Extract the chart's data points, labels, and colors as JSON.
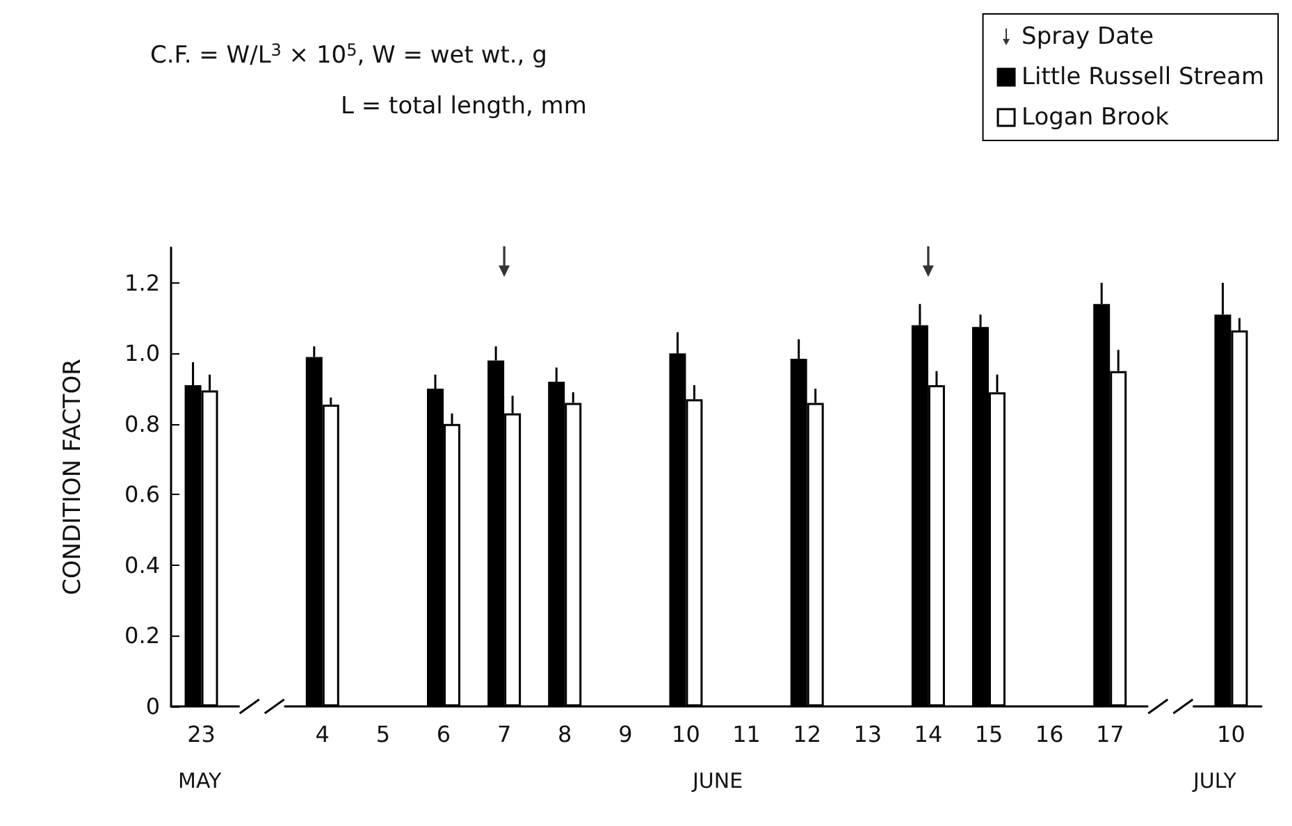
{
  "chart_data": {
    "type": "bar",
    "ylabel": "CONDITION FACTOR",
    "categories": [
      "23",
      null,
      "4",
      "5",
      "6",
      "7",
      "8",
      "9",
      "10",
      "11",
      "12",
      "13",
      "14",
      "15",
      "16",
      "17",
      null,
      "10"
    ],
    "series": [
      {
        "name": "Spray Date",
        "type": "scatter",
        "color": "#000000",
        "x": [
          "7",
          "14"
        ],
        "values": [
          1.26,
          1.26
        ]
      },
      {
        "name": "Little Russell Stream",
        "color": "#000000",
        "values": [
          0.91,
          null,
          0.99,
          null,
          0.9,
          0.98,
          0.92,
          null,
          1.0,
          null,
          0.985,
          null,
          1.08,
          1.075,
          null,
          1.14,
          null,
          1.11
        ],
        "errors": [
          [
            0.91,
            0.975
          ],
          null,
          [
            0.99,
            1.02
          ],
          null,
          [
            0.9,
            0.94
          ],
          [
            0.98,
            1.02
          ],
          [
            0.92,
            0.96
          ],
          null,
          [
            1.0,
            1.06
          ],
          null,
          [
            0.985,
            1.04
          ],
          null,
          [
            1.08,
            1.14
          ],
          [
            1.075,
            1.11
          ],
          null,
          [
            1.14,
            1.2
          ],
          null,
          [
            1.11,
            1.2
          ]
        ]
      },
      {
        "name": "Logan Brook",
        "color": "#ffffff",
        "values": [
          0.895,
          null,
          0.855,
          null,
          0.8,
          0.83,
          0.86,
          null,
          0.87,
          null,
          0.86,
          null,
          0.91,
          0.89,
          null,
          0.95,
          null,
          1.065
        ],
        "errors": [
          [
            0.895,
            0.94
          ],
          null,
          [
            0.855,
            0.875
          ],
          null,
          [
            0.8,
            0.83
          ],
          [
            0.83,
            0.88
          ],
          [
            0.86,
            0.89
          ],
          null,
          [
            0.87,
            0.91
          ],
          null,
          [
            0.86,
            0.9
          ],
          null,
          [
            0.91,
            0.95
          ],
          [
            0.89,
            0.94
          ],
          null,
          [
            0.95,
            1.01
          ],
          null,
          [
            1.065,
            1.1
          ]
        ]
      }
    ],
    "ylim": [
      0,
      1.3
    ],
    "yticks": [
      0,
      0.2,
      0.4,
      0.6,
      {
        "value": 0.8,
        "label": "0.8"
      },
      {
        "value": 1,
        "label": "1.0"
      },
      1.2
    ],
    "grid": false,
    "legend": "top right",
    "annotations": [
      "C.F. = W/L$^{3}$ × 10$^{5}$, W = wet wt., g",
      "L = total length, mm",
      "MAY",
      "JUNE",
      "JULY"
    ]
  }
}
